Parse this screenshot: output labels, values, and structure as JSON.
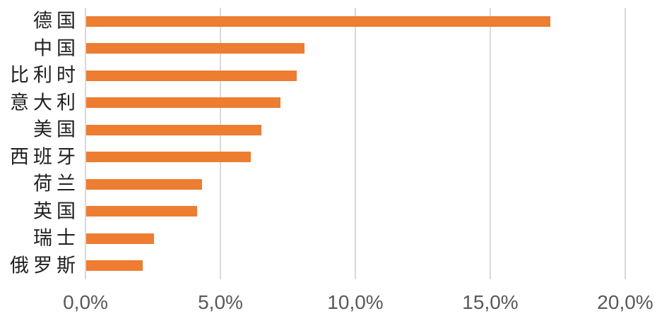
{
  "chart_data": {
    "type": "bar",
    "orientation": "horizontal",
    "title": "",
    "xlabel": "",
    "ylabel": "",
    "categories": [
      "德国",
      "中国",
      "比利时",
      "意大利",
      "美国",
      "西班牙",
      "荷兰",
      "英国",
      "瑞士",
      "俄罗斯"
    ],
    "values": [
      17.2,
      8.1,
      7.8,
      7.2,
      6.5,
      6.1,
      4.3,
      4.1,
      2.5,
      2.1
    ],
    "value_unit": "%",
    "xlim": [
      0,
      20
    ],
    "x_ticks": [
      {
        "value": 0,
        "label": "0,0%"
      },
      {
        "value": 5,
        "label": "5,0%"
      },
      {
        "value": 10,
        "label": "10,0%"
      },
      {
        "value": 15,
        "label": "15,0%"
      },
      {
        "value": 20,
        "label": "20,0%"
      }
    ],
    "grid": true,
    "legend": false,
    "colors": {
      "bar": "#ED7D31",
      "gridline": "#D9D9D9",
      "tick_label": "#595959",
      "category_label": "#1f1f1f",
      "background": "#FFFFFF"
    }
  }
}
